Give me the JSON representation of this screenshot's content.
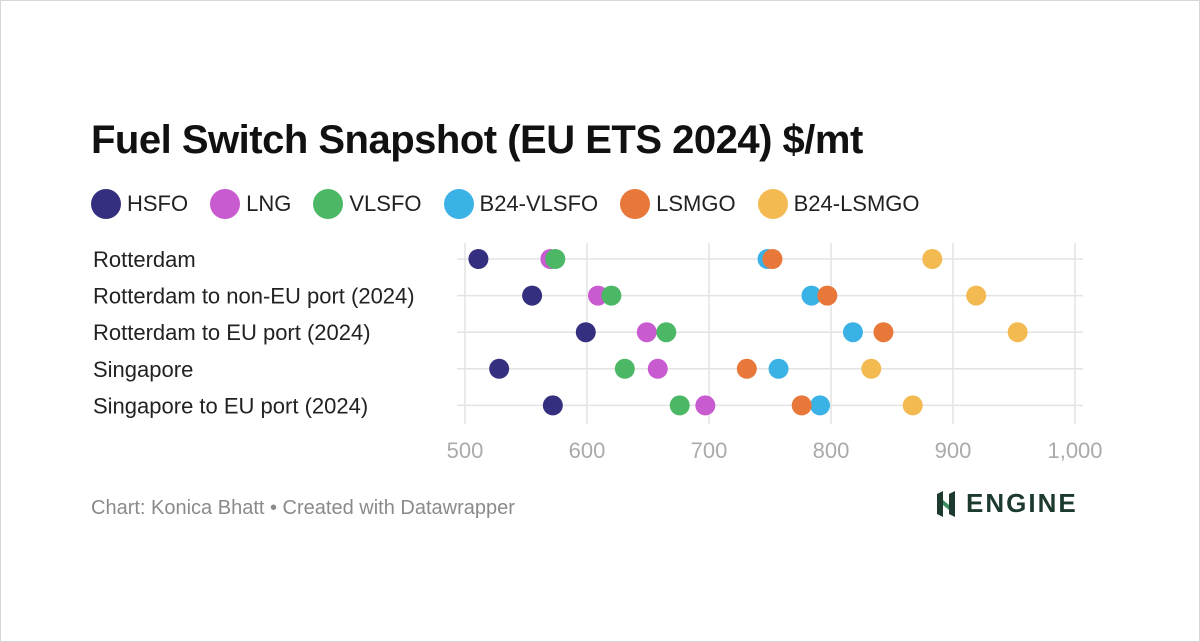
{
  "title": "Fuel Switch Snapshot (EU ETS 2024) $/mt",
  "footer": "Chart: Konica Bhatt • Created with Datawrapper",
  "logo": {
    "text": "ENGINE",
    "icon": "engine-logo-icon"
  },
  "chart_data": {
    "type": "scatter",
    "title": "Fuel Switch Snapshot (EU ETS 2024) $/mt",
    "xlabel": "",
    "ylabel": "",
    "xlim": [
      500,
      1000
    ],
    "xticks": [
      500,
      600,
      700,
      800,
      900,
      1000
    ],
    "xtick_labels": [
      "500",
      "600",
      "700",
      "800",
      "900",
      "1,000"
    ],
    "grid": true,
    "legend_position": "top",
    "categories": [
      "Rotterdam",
      "Rotterdam to non-EU port (2024)",
      "Rotterdam to EU port (2024)",
      "Singapore",
      "Singapore to EU port (2024)"
    ],
    "series": [
      {
        "name": "HSFO",
        "color": "#352f7f",
        "values": [
          511,
          555,
          599,
          528,
          572
        ]
      },
      {
        "name": "LNG",
        "color": "#c95bd0",
        "values": [
          570,
          609,
          649,
          658,
          697
        ]
      },
      {
        "name": "VLSFO",
        "color": "#4cb866",
        "values": [
          574,
          620,
          665,
          631,
          676
        ]
      },
      {
        "name": "B24-VLSFO",
        "color": "#3bb2e5",
        "values": [
          748,
          784,
          818,
          757,
          791
        ]
      },
      {
        "name": "LSMGO",
        "color": "#e8773a",
        "values": [
          752,
          797,
          843,
          731,
          776
        ]
      },
      {
        "name": "B24-LSMGO",
        "color": "#f3ba51",
        "values": [
          883,
          919,
          953,
          833,
          867
        ]
      }
    ]
  }
}
